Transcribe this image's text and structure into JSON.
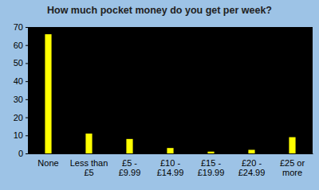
{
  "chart_data": {
    "type": "bar",
    "title": "How much pocket money do you get per week?",
    "categories": [
      "None",
      "Less than £5",
      "£5 - £9.99",
      "£10 - £14.99",
      "£15 - £19.99",
      "£20 - £24.99",
      "£25 or more"
    ],
    "values": [
      66,
      11,
      8,
      3,
      1,
      2,
      9
    ],
    "color": "#ffff00",
    "ylim": [
      0,
      70
    ],
    "yticks": [
      0,
      10,
      20,
      30,
      40,
      50,
      60,
      70
    ],
    "grid": false
  }
}
